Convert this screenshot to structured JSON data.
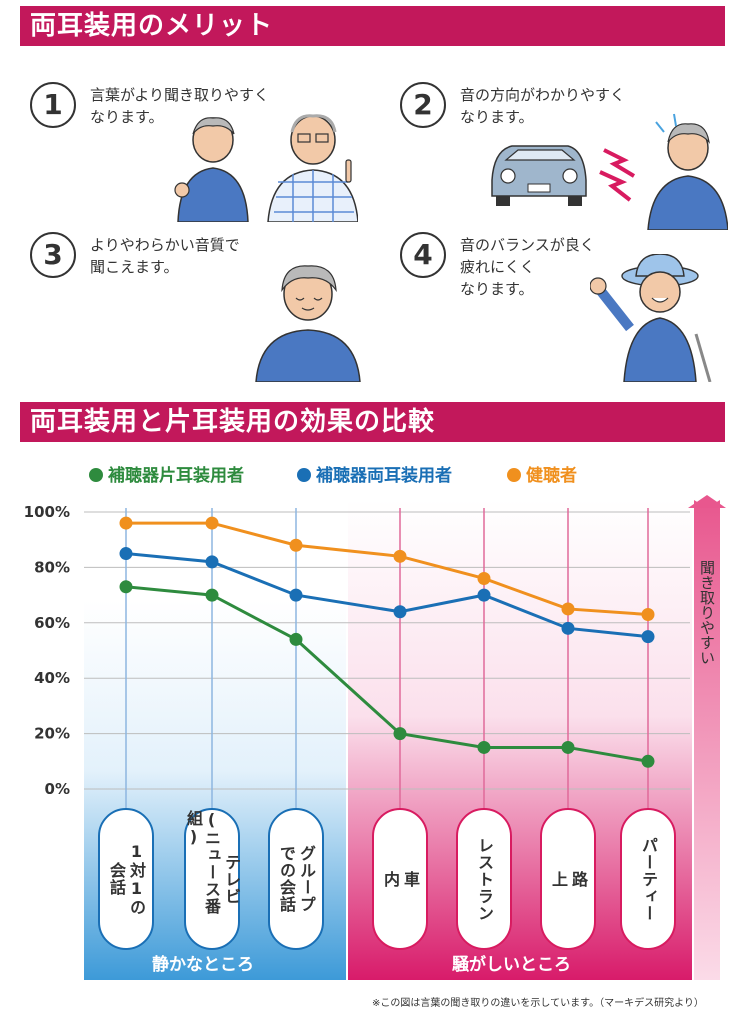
{
  "section1": {
    "title": "両耳装用のメリット",
    "merits": [
      {
        "num": "1",
        "lines": [
          "言葉がより聞き取りやすく",
          "なります。"
        ]
      },
      {
        "num": "2",
        "lines": [
          "音の方向がわかりやすく",
          "なります。"
        ]
      },
      {
        "num": "3",
        "lines": [
          "よりやわらかい音質で",
          "聞こえます。"
        ]
      },
      {
        "num": "4",
        "lines": [
          "音のバランスが良く",
          "疲れにくく",
          "なります。"
        ]
      }
    ]
  },
  "section2": {
    "title": "両耳装用と片耳装用の効果の比較"
  },
  "arrow_label": "聞き取りやすい",
  "zones": {
    "quiet": "静かなところ",
    "noisy": "騒がしいところ"
  },
  "categories_display": [
    {
      "cols": [
        "1対1の",
        "会話"
      ],
      "zone": "quiet"
    },
    {
      "cols": [
        "テレビ",
        "(ニュース番組)"
      ],
      "zone": "quiet"
    },
    {
      "cols": [
        "グループ",
        "での会話"
      ],
      "zone": "quiet"
    },
    {
      "cols": [
        "車",
        "内"
      ],
      "zone": "noisy"
    },
    {
      "cols": [
        "レストラン"
      ],
      "zone": "noisy"
    },
    {
      "cols": [
        "路",
        "上"
      ],
      "zone": "noisy"
    },
    {
      "cols": [
        "パーティー"
      ],
      "zone": "noisy"
    }
  ],
  "footnote": "※この図は言葉の聞き取りの違いを示しています。（マーキデス研究より）",
  "colors": {
    "magenta": "#c2185b",
    "green": "#2e8b3e",
    "blue": "#1a6fb5",
    "orange": "#f0901e"
  },
  "chart_data": {
    "type": "line",
    "title": "両耳装用と片耳装用の効果の比較",
    "categories": [
      "1対1の会話",
      "テレビ(ニュース番組)",
      "グループでの会話",
      "車内",
      "レストラン",
      "路上",
      "パーティー"
    ],
    "series": [
      {
        "name": "補聴器片耳装用者",
        "color": "#2e8b3e",
        "values": [
          73,
          70,
          54,
          20,
          15,
          15,
          10
        ]
      },
      {
        "name": "補聴器両耳装用者",
        "color": "#1a6fb5",
        "values": [
          85,
          82,
          70,
          64,
          70,
          58,
          55
        ]
      },
      {
        "name": "健聴者",
        "color": "#f0901e",
        "values": [
          96,
          96,
          88,
          84,
          76,
          65,
          63
        ]
      }
    ],
    "yticks": [
      "0%",
      "20%",
      "40%",
      "60%",
      "80%",
      "100%"
    ],
    "ylim": [
      0,
      100
    ],
    "xlabel": "",
    "ylabel": "",
    "legend": "top"
  }
}
